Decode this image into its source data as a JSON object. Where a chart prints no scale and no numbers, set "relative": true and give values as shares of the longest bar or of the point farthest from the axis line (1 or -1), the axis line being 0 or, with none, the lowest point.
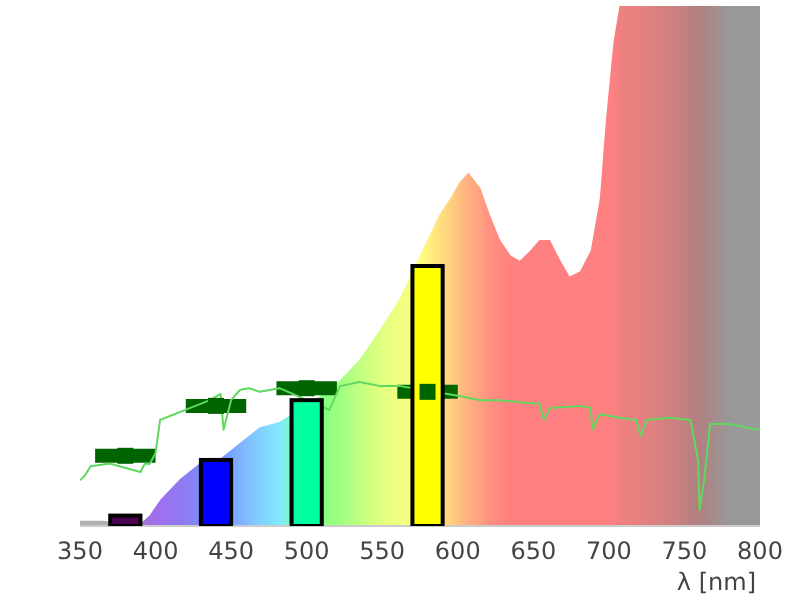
{
  "chart_data": {
    "type": "area",
    "relative": true,
    "xlabel": "λ [nm]",
    "xlim": [
      350,
      800
    ],
    "xticks": [
      350,
      400,
      450,
      500,
      550,
      600,
      650,
      700,
      750,
      800
    ],
    "grid": false,
    "legend": false,
    "series": [
      {
        "x": [
          350,
          365,
          380,
          390,
          396,
          403,
          416,
          429,
          443,
          456,
          469,
          482,
          496,
          509,
          522,
          535,
          549,
          562,
          575,
          588,
          595,
          601,
          607,
          615,
          621,
          628,
          635,
          641,
          648,
          654,
          661,
          668,
          674,
          681,
          688,
          694,
          698,
          703,
          707,
          720,
          740,
          760,
          780,
          790,
          800
        ],
        "values": [
          0.01,
          0.01,
          0.005,
          0.005,
          0.02,
          0.05,
          0.09,
          0.12,
          0.13,
          0.16,
          0.19,
          0.2,
          null,
          0.25,
          0.28,
          0.32,
          0.38,
          0.44,
          0.52,
          0.6,
          0.63,
          0.66,
          0.68,
          0.65,
          0.6,
          0.55,
          0.52,
          0.51,
          0.53,
          0.55,
          0.55,
          0.51,
          0.48,
          0.49,
          0.53,
          0.63,
          0.78,
          0.93,
          1,
          1,
          1,
          1,
          1,
          1,
          1
        ],
        "colors": [
          "#b0b0b0",
          "#b0b0b0",
          "#b0b0b0",
          "#a080c0",
          "#a070e0",
          "#a070f0",
          "#9078f0",
          "#8088f8",
          "#7098ff",
          "#80b0ff",
          "#80d0ff",
          "#80e8ff",
          "#80ff90",
          "#80ff80",
          "#a0ff80",
          "#c0ff80",
          "#e0ff80",
          "#f0ff80",
          "#ffff80",
          "#ffe080",
          "#ffd080",
          "#ffc080",
          "#ffb080",
          "#ffa080",
          "#ff9080",
          "#ff8880",
          "#ff8080",
          "#ff8080",
          "#ff8080",
          "#ff8080",
          "#ff8080",
          "#ff8080",
          "#ff8080",
          "#ff8080",
          "#ff8080",
          "#ff8080",
          "#ff8080",
          "#ff8080",
          "#f08080",
          "#e88080",
          "#d08080",
          "#b08080",
          "#999999",
          "#999999",
          "#999999"
        ]
      },
      {
        "type": "line",
        "color": "#60d860",
        "x": [
          350,
          353,
          357,
          363,
          370,
          376,
          383,
          390,
          393,
          396,
          400,
          403,
          410,
          416,
          429,
          436,
          443,
          445,
          450,
          456,
          462,
          469,
          482,
          496,
          509,
          515,
          522,
          535,
          549,
          562,
          575,
          588,
          601,
          615,
          628,
          641,
          654,
          657,
          661,
          681,
          688,
          689,
          694,
          707,
          718,
          721,
          725,
          740,
          754,
          759,
          760,
          763,
          767,
          780,
          793,
          800
        ],
        "values": [
          0.088,
          0.096,
          0.115,
          null,
          0.12,
          0.115,
          null,
          0.104,
          0.12,
          0.119,
          0.14,
          0.204,
          0.212,
          0.219,
          null,
          0.242,
          0.254,
          0.185,
          0.242,
          0.262,
          0.265,
          0.258,
          0.265,
          null,
          null,
          0.223,
          0.269,
          0.277,
          0.269,
          0.269,
          null,
          null,
          0.25,
          0.242,
          0.242,
          0.238,
          0.235,
          0.204,
          0.227,
          0.231,
          0.227,
          0.185,
          0.215,
          0.208,
          0.204,
          0.173,
          0.204,
          0.208,
          0.204,
          0.127,
          0.031,
          0.088,
          0.196,
          0.196,
          0.188,
          0.185
        ]
      },
      {
        "type": "bar",
        "x": [
          380
        ],
        "values": [
          0.02
        ],
        "color": "#4b0050"
      },
      {
        "type": "bar",
        "x": [
          440
        ],
        "values": [
          0.127
        ],
        "color": "#0000ff"
      },
      {
        "type": "bar",
        "x": [
          500
        ],
        "values": [
          0.242
        ],
        "color": "#00ffa0"
      },
      {
        "type": "bar",
        "x": [
          580
        ],
        "values": [
          0.5
        ],
        "color": "#ffff00"
      },
      {
        "type": "scatter",
        "marker": "square",
        "color": "#006400",
        "x": [
          380,
          440,
          500,
          580
        ],
        "values": [
          0.135,
          0.231,
          0.265,
          0.258
        ],
        "xerrors": [
          20,
          20,
          20,
          20
        ]
      }
    ]
  }
}
